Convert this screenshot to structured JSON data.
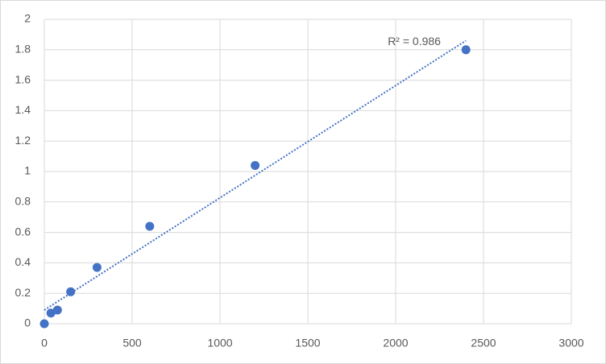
{
  "chart_data": {
    "type": "scatter",
    "series": [
      {
        "color": "#4472c4",
        "x": [
          0,
          37.5,
          75,
          150,
          300,
          600,
          1200,
          2400
        ],
        "values": [
          0,
          0.07,
          0.09,
          0.21,
          0.37,
          0.64,
          1.04,
          1.8
        ]
      }
    ],
    "trendline": {
      "x": [
        0,
        2400
      ],
      "values": [
        0.09,
        1.86
      ],
      "color": "#4472c4",
      "label": "R² = 0.986"
    },
    "xlim": [
      0,
      3000
    ],
    "xticks": [
      0,
      500,
      1000,
      1500,
      2000,
      2500,
      3000
    ],
    "ylim": [
      0,
      2
    ],
    "yticks": [
      0,
      0.2,
      0.4,
      0.6,
      0.8,
      1,
      1.2,
      1.4,
      1.6,
      1.8,
      2
    ],
    "grid": true
  }
}
